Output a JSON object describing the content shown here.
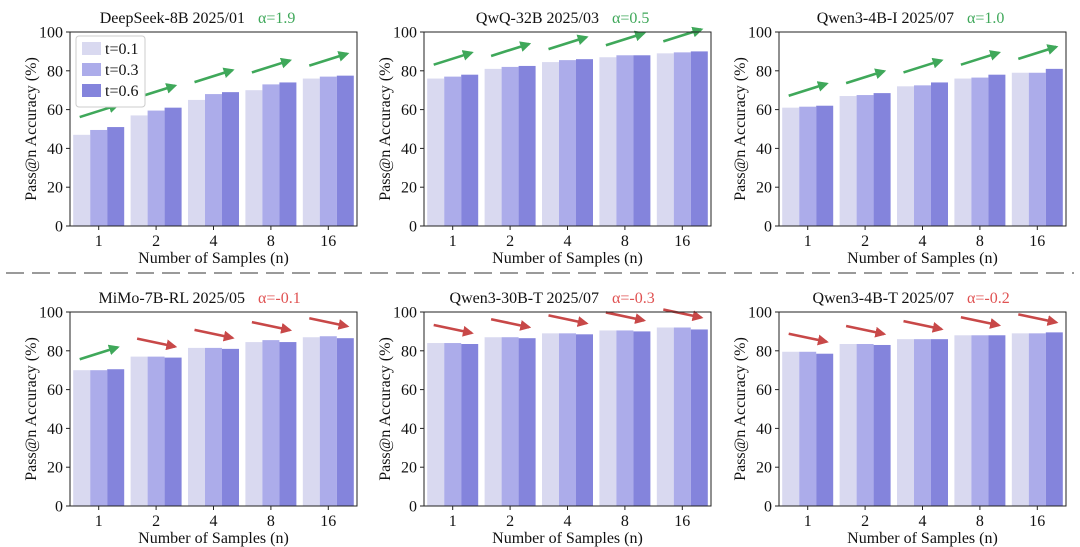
{
  "figure": {
    "legend": {
      "entries": [
        "t=0.1",
        "t=0.3",
        "t=0.6"
      ]
    },
    "colors": {
      "series": [
        "#d9d9f0",
        "#acacea",
        "#8484dc"
      ],
      "arrow_up": "#3fa85a",
      "arrow_down": "#c84848",
      "alpha_positive": "#3fa85a",
      "alpha_negative": "#e05252",
      "separator": "#9a9a9a"
    }
  },
  "chart_data": [
    {
      "type": "bar",
      "title": "DeepSeek-8B 2025/01",
      "alpha": "α=1.9",
      "trend": "up",
      "xlabel": "Number of Samples (n)",
      "ylabel": "Pass@n Accuracy (%)",
      "ylim": [
        0,
        100
      ],
      "yticks": [
        0,
        20,
        40,
        60,
        80,
        100
      ],
      "categories": [
        "1",
        "2",
        "4",
        "8",
        "16"
      ],
      "arrows": [
        "up",
        "up",
        "up",
        "up",
        "up"
      ],
      "legend": "top-left",
      "series": [
        {
          "name": "t=0.1",
          "values": [
            47,
            57,
            65,
            70,
            76
          ]
        },
        {
          "name": "t=0.3",
          "values": [
            49.5,
            59.5,
            68,
            73,
            77
          ]
        },
        {
          "name": "t=0.6",
          "values": [
            51,
            61,
            69,
            74,
            77.5
          ]
        }
      ]
    },
    {
      "type": "bar",
      "title": "QwQ-32B 2025/03",
      "alpha": "α=0.5",
      "trend": "up",
      "xlabel": "Number of Samples (n)",
      "ylabel": "Pass@n Accuracy (%)",
      "ylim": [
        0,
        100
      ],
      "yticks": [
        0,
        20,
        40,
        60,
        80,
        100
      ],
      "categories": [
        "1",
        "2",
        "4",
        "8",
        "16"
      ],
      "arrows": [
        "up",
        "up",
        "up",
        "up",
        "up"
      ],
      "series": [
        {
          "name": "t=0.1",
          "values": [
            76,
            81,
            84.5,
            87,
            89
          ]
        },
        {
          "name": "t=0.3",
          "values": [
            77,
            82,
            85.5,
            88,
            89.5
          ]
        },
        {
          "name": "t=0.6",
          "values": [
            78,
            82.5,
            86,
            88,
            90
          ]
        }
      ]
    },
    {
      "type": "bar",
      "title": "Qwen3-4B-I 2025/07",
      "alpha": "α=1.0",
      "trend": "up",
      "xlabel": "Number of Samples (n)",
      "ylabel": "Pass@n Accuracy (%)",
      "ylim": [
        0,
        100
      ],
      "yticks": [
        0,
        20,
        40,
        60,
        80,
        100
      ],
      "categories": [
        "1",
        "2",
        "4",
        "8",
        "16"
      ],
      "arrows": [
        "up",
        "up",
        "up",
        "up",
        "up"
      ],
      "series": [
        {
          "name": "t=0.1",
          "values": [
            61,
            67,
            72,
            76,
            79
          ]
        },
        {
          "name": "t=0.3",
          "values": [
            61.5,
            67.5,
            72.5,
            76.5,
            79
          ]
        },
        {
          "name": "t=0.6",
          "values": [
            62,
            68.5,
            74,
            78,
            81
          ]
        }
      ]
    },
    {
      "type": "bar",
      "title": "MiMo-7B-RL 2025/05",
      "alpha": "α=-0.1",
      "trend": "down",
      "xlabel": "Number of Samples (n)",
      "ylabel": "Pass@n Accuracy (%)",
      "ylim": [
        0,
        100
      ],
      "yticks": [
        0,
        20,
        40,
        60,
        80,
        100
      ],
      "categories": [
        "1",
        "2",
        "4",
        "8",
        "16"
      ],
      "arrows": [
        "up",
        "down",
        "down",
        "down",
        "down"
      ],
      "series": [
        {
          "name": "t=0.1",
          "values": [
            70,
            77,
            81.5,
            84.5,
            87
          ]
        },
        {
          "name": "t=0.3",
          "values": [
            70,
            77,
            81.5,
            85.5,
            87.5
          ]
        },
        {
          "name": "t=0.6",
          "values": [
            70.5,
            76.5,
            81,
            84.5,
            86.5
          ]
        }
      ]
    },
    {
      "type": "bar",
      "title": "Qwen3-30B-T 2025/07",
      "alpha": "α=-0.3",
      "trend": "down",
      "xlabel": "Number of Samples (n)",
      "ylabel": "Pass@n Accuracy (%)",
      "ylim": [
        0,
        100
      ],
      "yticks": [
        0,
        20,
        40,
        60,
        80,
        100
      ],
      "categories": [
        "1",
        "2",
        "4",
        "8",
        "16"
      ],
      "arrows": [
        "down",
        "down",
        "down",
        "down",
        "down"
      ],
      "series": [
        {
          "name": "t=0.1",
          "values": [
            84,
            87,
            89,
            90.5,
            92
          ]
        },
        {
          "name": "t=0.3",
          "values": [
            84,
            87,
            89,
            90.5,
            92
          ]
        },
        {
          "name": "t=0.6",
          "values": [
            83.5,
            86.5,
            88.5,
            90,
            91
          ]
        }
      ]
    },
    {
      "type": "bar",
      "title": "Qwen3-4B-T 2025/07",
      "alpha": "α=-0.2",
      "trend": "down",
      "xlabel": "Number of Samples (n)",
      "ylabel": "Pass@n Accuracy (%)",
      "ylim": [
        0,
        100
      ],
      "yticks": [
        0,
        20,
        40,
        60,
        80,
        100
      ],
      "categories": [
        "1",
        "2",
        "4",
        "8",
        "16"
      ],
      "arrows": [
        "down",
        "down",
        "down",
        "down",
        "down"
      ],
      "series": [
        {
          "name": "t=0.1",
          "values": [
            79.5,
            83.5,
            86,
            88,
            89
          ]
        },
        {
          "name": "t=0.3",
          "values": [
            79.5,
            83.5,
            86,
            88,
            89
          ]
        },
        {
          "name": "t=0.6",
          "values": [
            78.5,
            83,
            86,
            88,
            89.5
          ]
        }
      ]
    }
  ]
}
